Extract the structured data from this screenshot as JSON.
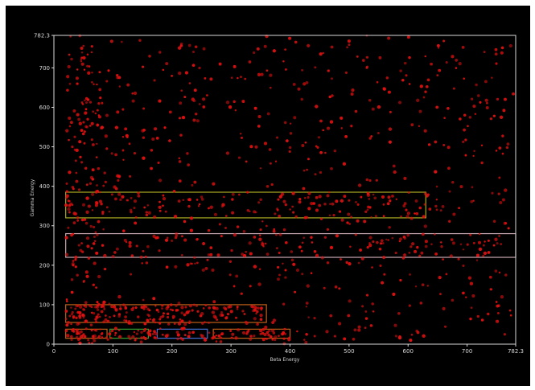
{
  "chart_data": {
    "type": "scatter",
    "title": "",
    "xlabel": "Beta Energy",
    "ylabel": "Gamma Energy",
    "xlim": [
      0,
      782.3
    ],
    "ylim": [
      0,
      782.3
    ],
    "x_ticks": [
      {
        "value": 0,
        "label": "0"
      },
      {
        "value": 100,
        "label": "100"
      },
      {
        "value": 200,
        "label": "200"
      },
      {
        "value": 300,
        "label": "300"
      },
      {
        "value": 400,
        "label": "400"
      },
      {
        "value": 500,
        "label": "500"
      },
      {
        "value": 600,
        "label": "600"
      },
      {
        "value": 700,
        "label": "700"
      },
      {
        "value": 782.3,
        "label": "782.3"
      }
    ],
    "y_ticks": [
      {
        "value": 0,
        "label": "0"
      },
      {
        "value": 100,
        "label": "100"
      },
      {
        "value": 200,
        "label": "200"
      },
      {
        "value": 300,
        "label": "300"
      },
      {
        "value": 400,
        "label": "400"
      },
      {
        "value": 500,
        "label": "500"
      },
      {
        "value": 600,
        "label": "600"
      },
      {
        "value": 700,
        "label": "700"
      },
      {
        "value": 782.3,
        "label": "782.3"
      }
    ],
    "grid": false,
    "legend": "none",
    "colors": {
      "background": "#000000",
      "axis": "#d8d8d8",
      "points": "#e01010"
    },
    "regions": [
      {
        "x0": 20,
        "x1": 630,
        "y0": 320,
        "y1": 385,
        "color": "#a8a820"
      },
      {
        "x0": 20,
        "x1": 782.3,
        "y0": 220,
        "y1": 280,
        "color": "#c8a8b0"
      },
      {
        "x0": 20,
        "x1": 360,
        "y0": 55,
        "y1": 100,
        "color": "#c06018"
      },
      {
        "x0": 20,
        "x1": 90,
        "y0": 15,
        "y1": 38,
        "color": "#c06018"
      },
      {
        "x0": 95,
        "x1": 160,
        "y0": 15,
        "y1": 38,
        "color": "#30a030"
      },
      {
        "x0": 175,
        "x1": 260,
        "y0": 15,
        "y1": 38,
        "color": "#4070d0"
      },
      {
        "x0": 270,
        "x1": 400,
        "y0": 15,
        "y1": 38,
        "color": "#c06018"
      }
    ],
    "point_clusters": [
      {
        "x_range": [
          20,
          782.3
        ],
        "y_range": [
          0,
          782.3
        ],
        "count": 700
      },
      {
        "x_range": [
          20,
          360
        ],
        "y_range": [
          50,
          100
        ],
        "count": 160
      },
      {
        "x_range": [
          20,
          400
        ],
        "y_range": [
          10,
          40
        ],
        "count": 120
      },
      {
        "x_range": [
          20,
          630
        ],
        "y_range": [
          320,
          385
        ],
        "count": 110
      },
      {
        "x_range": [
          20,
          782.3
        ],
        "y_range": [
          220,
          280
        ],
        "count": 80
      },
      {
        "x_range": [
          20,
          80
        ],
        "y_range": [
          0,
          782.3
        ],
        "count": 140
      }
    ]
  }
}
